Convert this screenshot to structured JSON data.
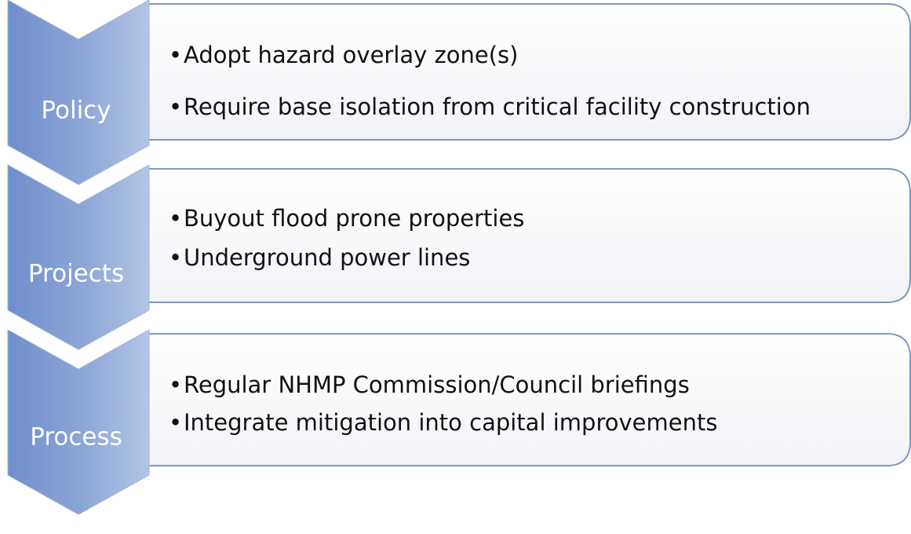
{
  "stages": [
    {
      "label": "Policy",
      "bullets": [
        "Adopt hazard overlay zone(s)",
        "Require base isolation from critical facility construction"
      ]
    },
    {
      "label": "Projects",
      "bullets": [
        "Buyout flood prone properties",
        "Underground power lines"
      ]
    },
    {
      "label": "Process",
      "bullets": [
        "Regular NHMP Commission/Council briefings",
        "Integrate mitigation into capital improvements"
      ]
    }
  ]
}
